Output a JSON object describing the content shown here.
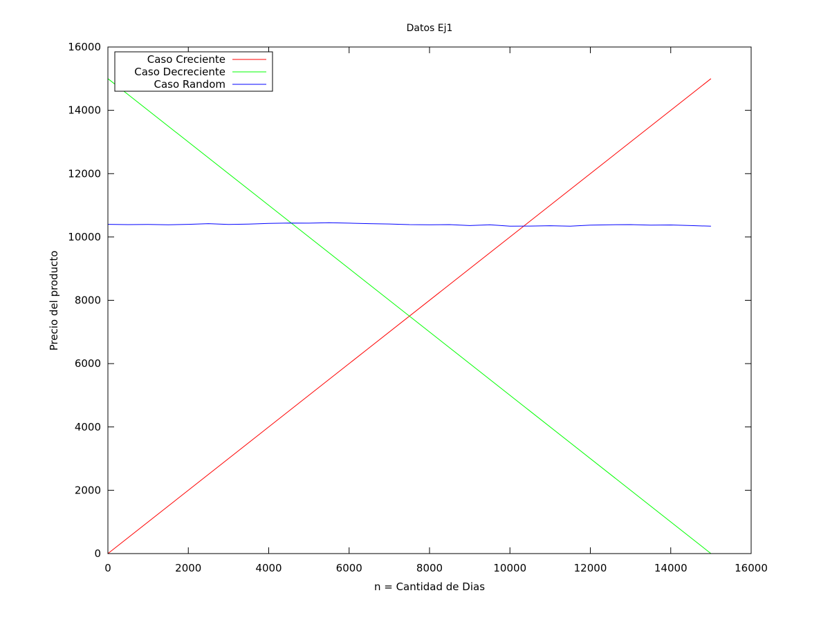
{
  "chart_data": {
    "type": "line",
    "title": "Datos Ej1",
    "xlabel": "n = Cantidad de Dias",
    "ylabel": "Precio del producto",
    "xlim": [
      0,
      16000
    ],
    "ylim": [
      0,
      16000
    ],
    "xticks": [
      0,
      2000,
      4000,
      6000,
      8000,
      10000,
      12000,
      14000,
      16000
    ],
    "yticks": [
      0,
      2000,
      4000,
      6000,
      8000,
      10000,
      12000,
      14000,
      16000
    ],
    "grid": false,
    "legend_position": "top-left",
    "series": [
      {
        "name": "Caso Creciente",
        "color": "#ff0000",
        "x": [
          0,
          15000
        ],
        "y": [
          0,
          15000
        ]
      },
      {
        "name": "Caso Decreciente",
        "color": "#00ff00",
        "x": [
          0,
          15000
        ],
        "y": [
          15000,
          0
        ]
      },
      {
        "name": "Caso Random",
        "color": "#0000ff",
        "x": [
          0,
          500,
          1000,
          1500,
          2000,
          2500,
          3000,
          3500,
          4000,
          4500,
          5000,
          5500,
          6000,
          6500,
          7000,
          7500,
          8000,
          8500,
          9000,
          9500,
          10000,
          10500,
          11000,
          11500,
          12000,
          12500,
          13000,
          13500,
          14000,
          14500,
          15000
        ],
        "y": [
          10400,
          10390,
          10395,
          10385,
          10400,
          10420,
          10395,
          10405,
          10430,
          10440,
          10435,
          10450,
          10435,
          10420,
          10410,
          10390,
          10385,
          10390,
          10360,
          10385,
          10340,
          10345,
          10355,
          10340,
          10375,
          10385,
          10390,
          10375,
          10380,
          10360,
          10340
        ]
      }
    ]
  }
}
